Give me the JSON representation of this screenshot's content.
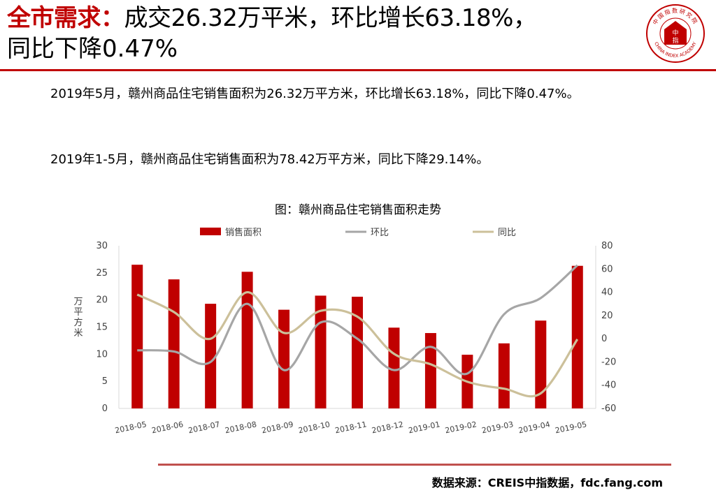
{
  "header": {
    "title_accent": "全市需求：",
    "title_rest": "成交26.32万平米，环比增长63.18%，",
    "title_line2": "同比下降0.47%"
  },
  "logo": {
    "name": "china-index-academy-seal",
    "text_top": "中国指数研究院",
    "text_center_1": "中",
    "text_center_2": "指",
    "text_bottom": "CHINA INDEX ACADEMY",
    "color": "#c00000"
  },
  "body": {
    "paragraph1": "2019年5月，赣州商品住宅销售面积为26.32万平方米，环比增长63.18%，同比下降0.47%。",
    "paragraph2": "2019年1-5月，赣州商品住宅销售面积为78.42万平方米，同比下降29.14%。"
  },
  "chart_caption": "图：赣州商品住宅销售面积走势",
  "source": "数据来源：CREIS中指数据，fdc.fang.com",
  "chart_data": {
    "type": "bar",
    "title": "图：赣州商品住宅销售面积走势",
    "categories": [
      "2018-05",
      "2018-06",
      "2018-07",
      "2018-08",
      "2018-09",
      "2018-10",
      "2018-11",
      "2018-12",
      "2019-01",
      "2019-02",
      "2019-03",
      "2019-04",
      "2019-05"
    ],
    "ylabel": "万平方米",
    "y2label": "%",
    "ylim": [
      0,
      30
    ],
    "y2lim": [
      -60,
      80
    ],
    "yticks": [
      0,
      5,
      10,
      15,
      20,
      25,
      30
    ],
    "y2ticks": [
      -60,
      -40,
      -20,
      0,
      20,
      40,
      60,
      80
    ],
    "legend_position": "top",
    "grid": false,
    "series": [
      {
        "name": "销售面积",
        "type": "bar",
        "axis": "left",
        "color": "#c00000",
        "values": [
          26.5,
          23.8,
          19.3,
          25.2,
          18.2,
          20.8,
          20.6,
          14.9,
          13.9,
          9.9,
          12.0,
          16.2,
          26.3
        ]
      },
      {
        "name": "环比",
        "type": "line",
        "axis": "right",
        "color": "#a6a6a6",
        "values": [
          -10,
          -11,
          -20,
          30,
          -27,
          14,
          0,
          -27,
          -7,
          -30,
          21,
          35,
          63.18
        ]
      },
      {
        "name": "同比",
        "type": "line",
        "axis": "right",
        "color": "#ccc09a",
        "values": [
          38,
          23,
          0,
          40,
          5,
          24,
          19,
          -13,
          -22,
          -37,
          -43,
          -47,
          -0.47
        ]
      }
    ]
  }
}
